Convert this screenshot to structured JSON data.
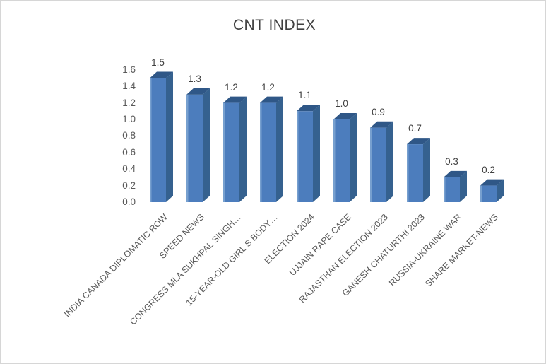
{
  "chart_data": {
    "type": "bar",
    "style": "3d-column",
    "title": "CNT INDEX",
    "categories": [
      "INDIA CANADA DIPLOMATIC ROW",
      "SPEED NEWS",
      "CONGRESS MLA SUKHPAL SINGH…",
      "15-YEAR-OLD GIRL S BODY…",
      "ELECTION 2024",
      "UJJAIN RAPE CASE",
      "RAJASTHAN ELECTION 2023",
      "GANESH CHATURTHI 2023",
      "RUSSIA-UKRAINE WAR",
      "SHARE MARKET-NEWS"
    ],
    "values": [
      1.5,
      1.3,
      1.2,
      1.2,
      1.1,
      1.0,
      0.9,
      0.7,
      0.3,
      0.2
    ],
    "xlabel": "",
    "ylabel": "",
    "ylim": [
      0.0,
      1.6
    ],
    "ytick_step": 0.2,
    "ytick_labels": [
      "0.0",
      "0.2",
      "0.4",
      "0.6",
      "0.8",
      "1.0",
      "1.2",
      "1.4",
      "1.6"
    ],
    "grid": false,
    "legend": "none",
    "colors": {
      "bar_front": "#4C7DBD",
      "bar_front_highlight": "#77A0CF",
      "bar_top": "#2F5787",
      "bar_side": "#35618F",
      "title_text": "#404040",
      "value_label_text": "#404040",
      "axis_text": "#595959",
      "frame_border": "#d6d6d6",
      "background": "#ffffff"
    }
  }
}
